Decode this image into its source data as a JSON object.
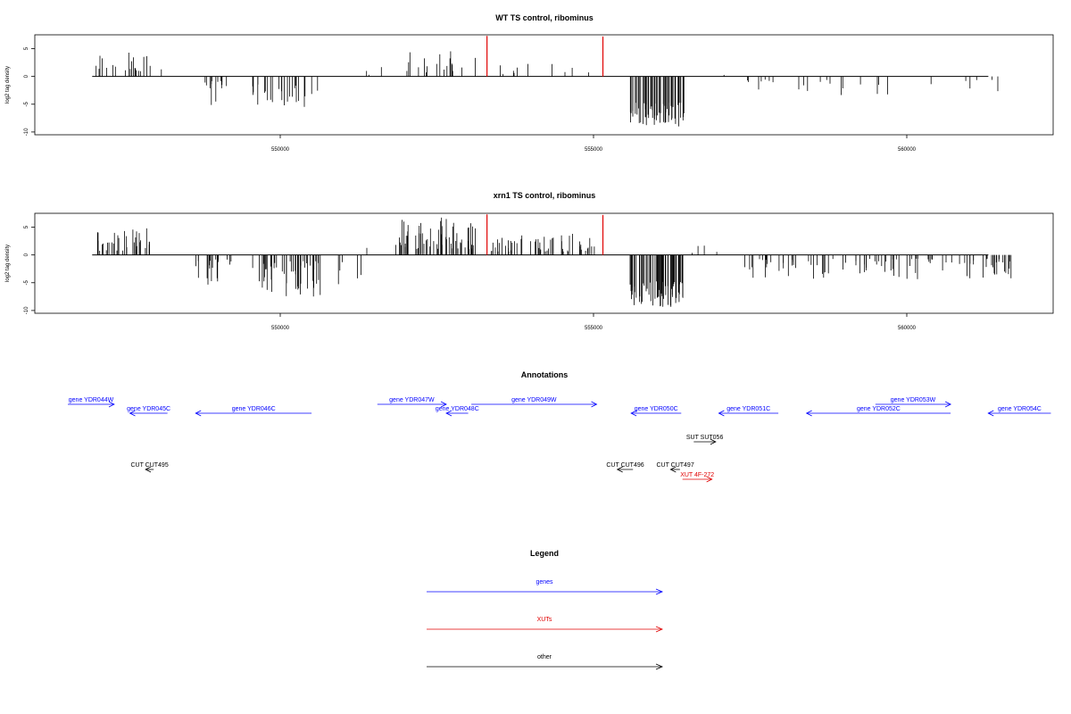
{
  "chart_data": [
    {
      "type": "bar",
      "title": "WT TS control, ribominus",
      "ylabel": "log2 tag density",
      "xlabel": "",
      "xlim": [
        546400,
        561900
      ],
      "ylim": [
        -10.5,
        7.5
      ],
      "x_ticks": [
        550000,
        555000,
        560000
      ],
      "y_ticks": [
        -10,
        -5,
        0,
        5
      ],
      "highlight_color": "#e00000",
      "bar_color": "#000000",
      "highlights": [
        {
          "x": 553300,
          "value": 7.3
        },
        {
          "x": 555150,
          "value": 7.2
        }
      ],
      "segments": [
        {
          "x_start": 546950,
          "x_end": 547950,
          "min": 0,
          "max": 4.3,
          "density": 0.28
        },
        {
          "x_start": 547950,
          "x_end": 548300,
          "min": 0,
          "max": 1.5,
          "density": 0.05
        },
        {
          "x_start": 548650,
          "x_end": 549250,
          "min": -5.5,
          "max": 0,
          "density": 0.3
        },
        {
          "x_start": 549550,
          "x_end": 550600,
          "min": -5.5,
          "max": 0,
          "density": 0.35
        },
        {
          "x_start": 551200,
          "x_end": 551900,
          "min": 0,
          "max": 2.0,
          "density": 0.06
        },
        {
          "x_start": 551900,
          "x_end": 553150,
          "min": 0,
          "max": 5.0,
          "density": 0.2
        },
        {
          "x_start": 553350,
          "x_end": 555050,
          "min": 0,
          "max": 2.3,
          "density": 0.08
        },
        {
          "x_start": 555550,
          "x_end": 556450,
          "min": -9.2,
          "max": 0,
          "density": 0.95
        },
        {
          "x_start": 556950,
          "x_end": 557150,
          "min": 0,
          "max": 1.6,
          "density": 0.05
        },
        {
          "x_start": 557400,
          "x_end": 561800,
          "min": -3.5,
          "max": 0,
          "density": 0.08
        }
      ]
    },
    {
      "type": "bar",
      "title": "xrn1 TS control, ribominus",
      "ylabel": "log2 tag density",
      "xlabel": "",
      "xlim": [
        546400,
        561900
      ],
      "ylim": [
        -10.5,
        7.5
      ],
      "x_ticks": [
        550000,
        555000,
        560000
      ],
      "y_ticks": [
        -10,
        -5,
        0,
        5
      ],
      "highlight_color": "#e00000",
      "bar_color": "#000000",
      "highlights": [
        {
          "x": 553300,
          "value": 7.3
        },
        {
          "x": 555150,
          "value": 7.2
        }
      ],
      "segments": [
        {
          "x_start": 546950,
          "x_end": 547950,
          "min": 0,
          "max": 5.0,
          "density": 0.5
        },
        {
          "x_start": 548650,
          "x_end": 549250,
          "min": -5.5,
          "max": 0,
          "density": 0.45
        },
        {
          "x_start": 549550,
          "x_end": 550650,
          "min": -7.5,
          "max": 0,
          "density": 0.6
        },
        {
          "x_start": 550650,
          "x_end": 551300,
          "min": -6.0,
          "max": 0,
          "density": 0.12
        },
        {
          "x_start": 551300,
          "x_end": 551900,
          "min": 0,
          "max": 2.0,
          "density": 0.05
        },
        {
          "x_start": 551900,
          "x_end": 553150,
          "min": 0,
          "max": 7.0,
          "density": 0.7
        },
        {
          "x_start": 553350,
          "x_end": 555050,
          "min": 0,
          "max": 4.0,
          "density": 0.45
        },
        {
          "x_start": 555550,
          "x_end": 556450,
          "min": -9.5,
          "max": 0,
          "density": 0.95
        },
        {
          "x_start": 556500,
          "x_end": 557200,
          "min": 0,
          "max": 2.0,
          "density": 0.08
        },
        {
          "x_start": 557400,
          "x_end": 561800,
          "min": -4.5,
          "max": 0,
          "density": 0.3
        }
      ]
    }
  ],
  "annotations": {
    "title": "Annotations",
    "features": [
      {
        "label": "gene YDR044W",
        "type": "gene",
        "strand": "+",
        "x_start": 546300,
        "x_end": 547350,
        "row": 1
      },
      {
        "label": "gene YDR045C",
        "type": "gene",
        "strand": "-",
        "x_start": 547600,
        "x_end": 548200,
        "row": 2
      },
      {
        "label": "gene YDR046C",
        "type": "gene",
        "strand": "-",
        "x_start": 548650,
        "x_end": 550500,
        "row": 2
      },
      {
        "label": "gene YDR047W",
        "type": "gene",
        "strand": "+",
        "x_start": 551550,
        "x_end": 552650,
        "row": 1
      },
      {
        "label": "gene YDR048C",
        "type": "gene",
        "strand": "-",
        "x_start": 552650,
        "x_end": 553000,
        "row": 2
      },
      {
        "label": "gene YDR049W",
        "type": "gene",
        "strand": "+",
        "x_start": 553050,
        "x_end": 555050,
        "row": 1
      },
      {
        "label": "gene YDR050C",
        "type": "gene",
        "strand": "-",
        "x_start": 555600,
        "x_end": 556400,
        "row": 2
      },
      {
        "label": "gene YDR051C",
        "type": "gene",
        "strand": "-",
        "x_start": 557000,
        "x_end": 557950,
        "row": 2
      },
      {
        "label": "gene YDR052C",
        "type": "gene",
        "strand": "-",
        "x_start": 558400,
        "x_end": 560700,
        "row": 2
      },
      {
        "label": "gene YDR053W",
        "type": "gene",
        "strand": "+",
        "x_start": 559500,
        "x_end": 560700,
        "row": 1
      },
      {
        "label": "gene YDR054C",
        "type": "gene",
        "strand": "-",
        "x_start": 561300,
        "x_end": 562300,
        "row": 2
      },
      {
        "label": "SUT SUT056",
        "type": "other",
        "strand": "+",
        "x_start": 556600,
        "x_end": 556950,
        "row": 3
      },
      {
        "label": "CUT CUT495",
        "type": "other",
        "strand": "-",
        "x_start": 547850,
        "x_end": 547980,
        "row": 4
      },
      {
        "label": "CUT CUT496",
        "type": "other",
        "strand": "-",
        "x_start": 555380,
        "x_end": 555630,
        "row": 4
      },
      {
        "label": "CUT CUT497",
        "type": "other",
        "strand": "-",
        "x_start": 556230,
        "x_end": 556380,
        "row": 4
      },
      {
        "label": "XUT 4F-272",
        "type": "xut",
        "strand": "+",
        "x_start": 556420,
        "x_end": 556890,
        "row": 5
      }
    ]
  },
  "legend": {
    "title": "Legend",
    "items": [
      {
        "label": "genes",
        "color": "#0000ff"
      },
      {
        "label": "XUTs",
        "color": "#e00000"
      },
      {
        "label": "other",
        "color": "#000000"
      }
    ]
  },
  "colors": {
    "gene": "#0000ff",
    "xut": "#e00000",
    "other": "#000000"
  }
}
